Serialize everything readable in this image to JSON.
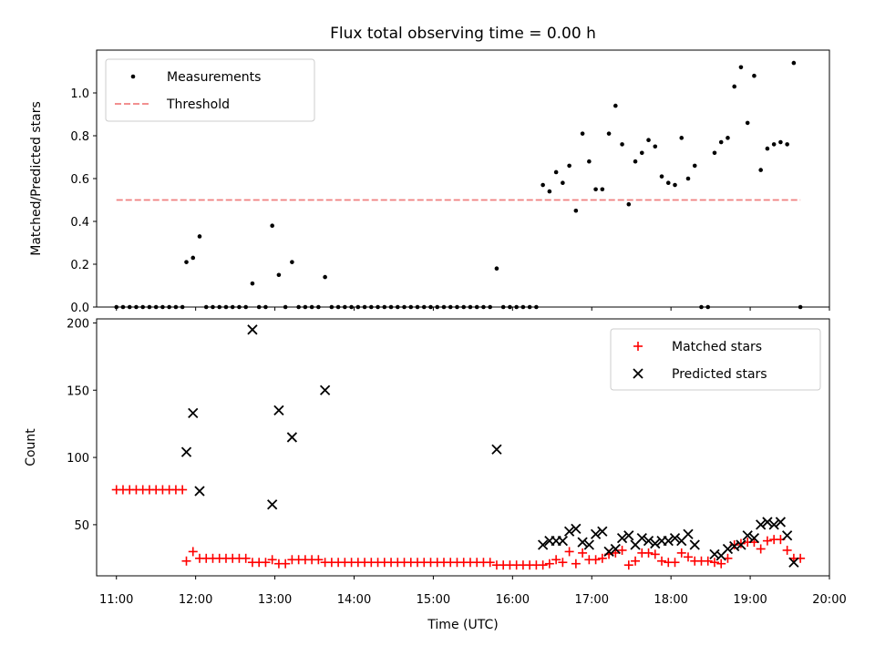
{
  "chart_data": [
    {
      "type": "scatter",
      "title": "Flux total observing time = 0.00 h",
      "xlabel": "",
      "ylabel": "Matched/Predicted stars",
      "xlim": [
        "10:45",
        "20:00"
      ],
      "ylim": [
        0,
        1.2
      ],
      "y_ticks": [
        "0.0",
        "0.2",
        "0.4",
        "0.6",
        "0.8",
        "1.0"
      ],
      "legend_position": "top-left",
      "series": [
        {
          "name": "Measurements",
          "color": "#000000",
          "marker": "dot",
          "points": [
            [
              "11:00",
              0
            ],
            [
              "11:05",
              0
            ],
            [
              "11:10",
              0
            ],
            [
              "11:15",
              0
            ],
            [
              "11:20",
              0
            ],
            [
              "11:25",
              0
            ],
            [
              "11:30",
              0
            ],
            [
              "11:35",
              0
            ],
            [
              "11:40",
              0
            ],
            [
              "11:45",
              0
            ],
            [
              "11:50",
              0
            ],
            [
              "11:53",
              0.21
            ],
            [
              "11:58",
              0.23
            ],
            [
              "12:03",
              0.33
            ],
            [
              "12:08",
              0
            ],
            [
              "12:13",
              0
            ],
            [
              "12:18",
              0
            ],
            [
              "12:23",
              0
            ],
            [
              "12:28",
              0
            ],
            [
              "12:33",
              0
            ],
            [
              "12:38",
              0
            ],
            [
              "12:43",
              0.11
            ],
            [
              "12:48",
              0
            ],
            [
              "12:53",
              0
            ],
            [
              "12:58",
              0.38
            ],
            [
              "13:03",
              0.15
            ],
            [
              "13:08",
              0
            ],
            [
              "13:13",
              0.21
            ],
            [
              "13:18",
              0
            ],
            [
              "13:23",
              0
            ],
            [
              "13:28",
              0
            ],
            [
              "13:33",
              0
            ],
            [
              "13:38",
              0.14
            ],
            [
              "13:43",
              0
            ],
            [
              "13:48",
              0
            ],
            [
              "13:53",
              0
            ],
            [
              "13:58",
              0
            ],
            [
              "14:03",
              0
            ],
            [
              "14:08",
              0
            ],
            [
              "14:13",
              0
            ],
            [
              "14:18",
              0
            ],
            [
              "14:23",
              0
            ],
            [
              "14:28",
              0
            ],
            [
              "14:33",
              0
            ],
            [
              "14:38",
              0
            ],
            [
              "14:43",
              0
            ],
            [
              "14:48",
              0
            ],
            [
              "14:53",
              0
            ],
            [
              "14:58",
              0
            ],
            [
              "15:03",
              0
            ],
            [
              "15:08",
              0
            ],
            [
              "15:13",
              0
            ],
            [
              "15:18",
              0
            ],
            [
              "15:23",
              0
            ],
            [
              "15:28",
              0
            ],
            [
              "15:33",
              0
            ],
            [
              "15:38",
              0
            ],
            [
              "15:43",
              0
            ],
            [
              "15:48",
              0.18
            ],
            [
              "15:53",
              0
            ],
            [
              "15:58",
              0
            ],
            [
              "16:03",
              0
            ],
            [
              "16:08",
              0
            ],
            [
              "16:13",
              0
            ],
            [
              "16:18",
              0
            ],
            [
              "16:23",
              0.57
            ],
            [
              "16:28",
              0.54
            ],
            [
              "16:33",
              0.63
            ],
            [
              "16:38",
              0.58
            ],
            [
              "16:43",
              0.66
            ],
            [
              "16:48",
              0.45
            ],
            [
              "16:53",
              0.81
            ],
            [
              "16:58",
              0.68
            ],
            [
              "17:03",
              0.55
            ],
            [
              "17:08",
              0.55
            ],
            [
              "17:13",
              0.81
            ],
            [
              "17:18",
              0.94
            ],
            [
              "17:23",
              0.76
            ],
            [
              "17:28",
              0.48
            ],
            [
              "17:33",
              0.68
            ],
            [
              "17:38",
              0.72
            ],
            [
              "17:43",
              0.78
            ],
            [
              "17:48",
              0.75
            ],
            [
              "17:53",
              0.61
            ],
            [
              "17:58",
              0.58
            ],
            [
              "18:03",
              0.57
            ],
            [
              "18:08",
              0.79
            ],
            [
              "18:13",
              0.6
            ],
            [
              "18:18",
              0.66
            ],
            [
              "18:23",
              0
            ],
            [
              "18:28",
              0
            ],
            [
              "18:33",
              0.72
            ],
            [
              "18:38",
              0.77
            ],
            [
              "18:43",
              0.79
            ],
            [
              "18:48",
              1.03
            ],
            [
              "18:53",
              1.12
            ],
            [
              "18:58",
              0.86
            ],
            [
              "19:03",
              1.08
            ],
            [
              "19:08",
              0.64
            ],
            [
              "19:13",
              0.74
            ],
            [
              "19:18",
              0.76
            ],
            [
              "19:23",
              0.77
            ],
            [
              "19:28",
              0.76
            ],
            [
              "19:33",
              1.14
            ],
            [
              "19:38",
              0
            ]
          ]
        },
        {
          "name": "Threshold",
          "color": "#f08080",
          "marker": "dashed-line",
          "points": [
            [
              "11:00",
              0.5
            ],
            [
              "19:38",
              0.5
            ]
          ]
        }
      ]
    },
    {
      "type": "scatter",
      "title": "",
      "xlabel": "Time (UTC)",
      "ylabel": "Count",
      "xlim": [
        "10:45",
        "20:00"
      ],
      "ylim": [
        12,
        203
      ],
      "x_ticks": [
        "11:00",
        "12:00",
        "13:00",
        "14:00",
        "15:00",
        "16:00",
        "17:00",
        "18:00",
        "19:00",
        "20:00"
      ],
      "y_ticks": [
        "50",
        "100",
        "150",
        "200"
      ],
      "legend_position": "top-right",
      "series": [
        {
          "name": "Matched stars",
          "color": "#ff0000",
          "marker": "plus",
          "points": [
            [
              "11:00",
              76
            ],
            [
              "11:05",
              76
            ],
            [
              "11:10",
              76
            ],
            [
              "11:15",
              76
            ],
            [
              "11:20",
              76
            ],
            [
              "11:25",
              76
            ],
            [
              "11:30",
              76
            ],
            [
              "11:35",
              76
            ],
            [
              "11:40",
              76
            ],
            [
              "11:45",
              76
            ],
            [
              "11:50",
              76
            ],
            [
              "11:53",
              23
            ],
            [
              "11:58",
              30
            ],
            [
              "12:03",
              25
            ],
            [
              "12:08",
              25
            ],
            [
              "12:13",
              25
            ],
            [
              "12:18",
              25
            ],
            [
              "12:23",
              25
            ],
            [
              "12:28",
              25
            ],
            [
              "12:33",
              25
            ],
            [
              "12:38",
              25
            ],
            [
              "12:43",
              22
            ],
            [
              "12:48",
              22
            ],
            [
              "12:53",
              22
            ],
            [
              "12:58",
              24
            ],
            [
              "13:03",
              21
            ],
            [
              "13:08",
              21
            ],
            [
              "13:13",
              24
            ],
            [
              "13:18",
              24
            ],
            [
              "13:23",
              24
            ],
            [
              "13:28",
              24
            ],
            [
              "13:33",
              24
            ],
            [
              "13:38",
              22
            ],
            [
              "13:43",
              22
            ],
            [
              "13:48",
              22
            ],
            [
              "13:53",
              22
            ],
            [
              "13:58",
              22
            ],
            [
              "14:03",
              22
            ],
            [
              "14:08",
              22
            ],
            [
              "14:13",
              22
            ],
            [
              "14:18",
              22
            ],
            [
              "14:23",
              22
            ],
            [
              "14:28",
              22
            ],
            [
              "14:33",
              22
            ],
            [
              "14:38",
              22
            ],
            [
              "14:43",
              22
            ],
            [
              "14:48",
              22
            ],
            [
              "14:53",
              22
            ],
            [
              "14:58",
              22
            ],
            [
              "15:03",
              22
            ],
            [
              "15:08",
              22
            ],
            [
              "15:13",
              22
            ],
            [
              "15:18",
              22
            ],
            [
              "15:23",
              22
            ],
            [
              "15:28",
              22
            ],
            [
              "15:33",
              22
            ],
            [
              "15:38",
              22
            ],
            [
              "15:43",
              22
            ],
            [
              "15:48",
              20
            ],
            [
              "15:53",
              20
            ],
            [
              "15:58",
              20
            ],
            [
              "16:03",
              20
            ],
            [
              "16:08",
              20
            ],
            [
              "16:13",
              20
            ],
            [
              "16:18",
              20
            ],
            [
              "16:23",
              20
            ],
            [
              "16:28",
              21
            ],
            [
              "16:33",
              24
            ],
            [
              "16:38",
              22
            ],
            [
              "16:43",
              30
            ],
            [
              "16:48",
              21
            ],
            [
              "16:53",
              29
            ],
            [
              "16:58",
              24
            ],
            [
              "17:03",
              24
            ],
            [
              "17:08",
              25
            ],
            [
              "17:13",
              28
            ],
            [
              "17:18",
              29
            ],
            [
              "17:23",
              31
            ],
            [
              "17:28",
              20
            ],
            [
              "17:33",
              23
            ],
            [
              "17:38",
              29
            ],
            [
              "17:43",
              29
            ],
            [
              "17:48",
              28
            ],
            [
              "17:53",
              23
            ],
            [
              "17:58",
              22
            ],
            [
              "18:03",
              22
            ],
            [
              "18:08",
              29
            ],
            [
              "18:13",
              26
            ],
            [
              "18:18",
              23
            ],
            [
              "18:23",
              23
            ],
            [
              "18:28",
              23
            ],
            [
              "18:33",
              22
            ],
            [
              "18:38",
              21
            ],
            [
              "18:43",
              25
            ],
            [
              "18:48",
              35
            ],
            [
              "18:53",
              36
            ],
            [
              "18:58",
              37
            ],
            [
              "19:03",
              37
            ],
            [
              "19:08",
              32
            ],
            [
              "19:13",
              38
            ],
            [
              "19:18",
              39
            ],
            [
              "19:23",
              39
            ],
            [
              "19:28",
              31
            ],
            [
              "19:33",
              25
            ],
            [
              "19:38",
              25
            ]
          ]
        },
        {
          "name": "Predicted stars",
          "color": "#000000",
          "marker": "x",
          "points": [
            [
              "11:53",
              104
            ],
            [
              "11:58",
              133
            ],
            [
              "12:03",
              75
            ],
            [
              "12:43",
              195
            ],
            [
              "12:58",
              65
            ],
            [
              "13:03",
              135
            ],
            [
              "13:13",
              115
            ],
            [
              "13:38",
              150
            ],
            [
              "15:48",
              106
            ],
            [
              "16:23",
              35
            ],
            [
              "16:28",
              38
            ],
            [
              "16:33",
              38
            ],
            [
              "16:38",
              38
            ],
            [
              "16:43",
              45
            ],
            [
              "16:48",
              47
            ],
            [
              "16:53",
              37
            ],
            [
              "16:58",
              35
            ],
            [
              "17:03",
              43
            ],
            [
              "17:08",
              45
            ],
            [
              "17:13",
              30
            ],
            [
              "17:18",
              32
            ],
            [
              "17:23",
              40
            ],
            [
              "17:28",
              42
            ],
            [
              "17:33",
              35
            ],
            [
              "17:38",
              40
            ],
            [
              "17:43",
              38
            ],
            [
              "17:48",
              36
            ],
            [
              "17:53",
              38
            ],
            [
              "17:58",
              38
            ],
            [
              "18:03",
              40
            ],
            [
              "18:08",
              38
            ],
            [
              "18:13",
              43
            ],
            [
              "18:18",
              35
            ],
            [
              "18:33",
              28
            ],
            [
              "18:38",
              27
            ],
            [
              "18:43",
              32
            ],
            [
              "18:48",
              34
            ],
            [
              "18:53",
              35
            ],
            [
              "18:58",
              42
            ],
            [
              "19:03",
              40
            ],
            [
              "19:08",
              50
            ],
            [
              "19:13",
              52
            ],
            [
              "19:18",
              50
            ],
            [
              "19:23",
              52
            ],
            [
              "19:28",
              42
            ],
            [
              "19:33",
              22
            ]
          ]
        }
      ]
    }
  ]
}
